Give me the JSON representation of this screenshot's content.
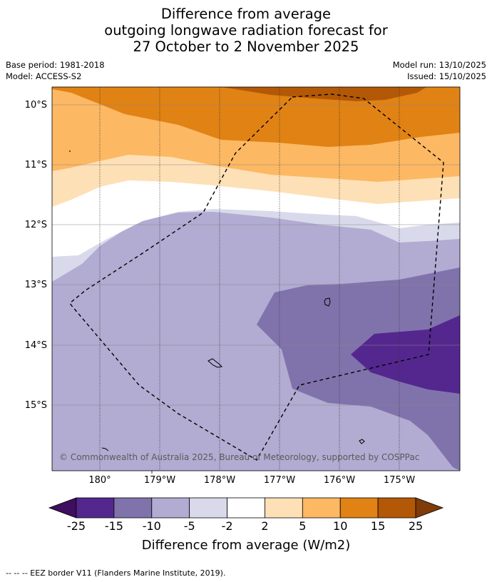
{
  "header": {
    "title_line1": "Difference from average",
    "title_line2": "outgoing longwave radiation forecast for",
    "title_line3": "27 October to 2 November 2025",
    "base_period": "Base period: 1981-2018",
    "model": "Model: ACCESS-S2",
    "model_run": "Model run: 13/10/2025",
    "issued": "Issued: 15/10/2025"
  },
  "map": {
    "lat_labels": [
      "10°S",
      "11°S",
      "12°S",
      "13°S",
      "14°S",
      "15°S"
    ],
    "lon_labels": [
      "180°",
      "179°W",
      "178°W",
      "177°W",
      "176°W",
      "175°W"
    ],
    "copyright": "© Commonwealth of Australia 2025, Bureau of Meteorology, supported by COSPPac"
  },
  "colorbar": {
    "colors": [
      "#3d0f5e",
      "#54278f",
      "#8073ac",
      "#b2abd2",
      "#d8daeb",
      "#ffffff",
      "#fee0b6",
      "#fdb863",
      "#e08214",
      "#b35806",
      "#7f3b08"
    ],
    "ticks": [
      "-25",
      "-15",
      "-10",
      "-5",
      "-2",
      "2",
      "5",
      "10",
      "15",
      "25"
    ],
    "label": "Difference from average (W/m2)"
  },
  "footer": {
    "legend_line": "--  --  -- EEZ border V11 (Flanders Marine Institute, 2019)."
  }
}
